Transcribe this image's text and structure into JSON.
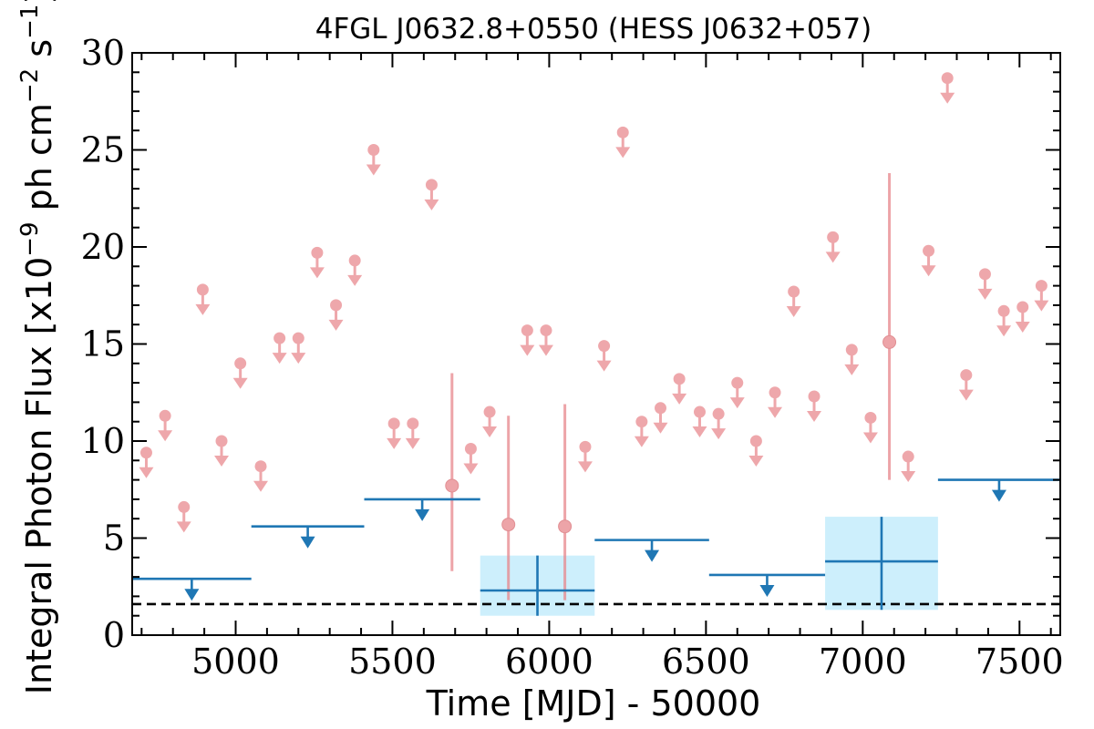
{
  "chart_data": {
    "type": "scatter",
    "title": "4FGL J0632.8+0550 (HESS J0632+057)",
    "xlabel": "Time [MJD] - 50000",
    "ylabel": "Integral Photon Flux [x10$^{-9}$ ph cm$^{-2}$ s$^{-1}$]",
    "xlim": [
      4670,
      7630
    ],
    "ylim": [
      0,
      30
    ],
    "xticks": [
      5000,
      5500,
      6000,
      6500,
      7000,
      7500
    ],
    "yticks": [
      0,
      5,
      10,
      15,
      20,
      25,
      30
    ],
    "grid": false,
    "colors": {
      "fine": "#e8868b",
      "coarse": "#1f77b4",
      "box": "#cdeffc",
      "reference": "#000000"
    },
    "reference_level": 1.6,
    "series": [
      {
        "kind": "upper_limits",
        "points": [
          {
            "x": 4715,
            "y": 9.4
          },
          {
            "x": 4775,
            "y": 11.3
          },
          {
            "x": 4835,
            "y": 6.6
          },
          {
            "x": 4895,
            "y": 17.8
          },
          {
            "x": 4955,
            "y": 10.0
          },
          {
            "x": 5015,
            "y": 14.0
          },
          {
            "x": 5080,
            "y": 8.7
          },
          {
            "x": 5140,
            "y": 15.3
          },
          {
            "x": 5200,
            "y": 15.3
          },
          {
            "x": 5260,
            "y": 19.7
          },
          {
            "x": 5320,
            "y": 17.0
          },
          {
            "x": 5380,
            "y": 19.3
          },
          {
            "x": 5440,
            "y": 25.0
          },
          {
            "x": 5505,
            "y": 10.9
          },
          {
            "x": 5565,
            "y": 10.9
          },
          {
            "x": 5625,
            "y": 23.2
          },
          {
            "x": 5750,
            "y": 9.6
          },
          {
            "x": 5810,
            "y": 11.5
          },
          {
            "x": 5930,
            "y": 15.7
          },
          {
            "x": 5990,
            "y": 15.7
          },
          {
            "x": 6115,
            "y": 9.7
          },
          {
            "x": 6175,
            "y": 14.9
          },
          {
            "x": 6235,
            "y": 25.9
          },
          {
            "x": 6295,
            "y": 11.0
          },
          {
            "x": 6355,
            "y": 11.7
          },
          {
            "x": 6415,
            "y": 13.2
          },
          {
            "x": 6480,
            "y": 11.5
          },
          {
            "x": 6540,
            "y": 11.4
          },
          {
            "x": 6600,
            "y": 13.0
          },
          {
            "x": 6660,
            "y": 10.0
          },
          {
            "x": 6720,
            "y": 12.5
          },
          {
            "x": 6780,
            "y": 17.7
          },
          {
            "x": 6845,
            "y": 12.3
          },
          {
            "x": 6905,
            "y": 20.5
          },
          {
            "x": 6965,
            "y": 14.7
          },
          {
            "x": 7025,
            "y": 11.2
          },
          {
            "x": 7145,
            "y": 9.2
          },
          {
            "x": 7210,
            "y": 19.8
          },
          {
            "x": 7270,
            "y": 28.7
          },
          {
            "x": 7330,
            "y": 13.4
          },
          {
            "x": 7390,
            "y": 18.6
          },
          {
            "x": 7450,
            "y": 16.7
          },
          {
            "x": 7510,
            "y": 16.9
          },
          {
            "x": 7570,
            "y": 18.0
          }
        ]
      },
      {
        "kind": "detections",
        "points": [
          {
            "x": 5690,
            "y": 7.7,
            "ylow": 3.3,
            "yhigh": 13.5
          },
          {
            "x": 5870,
            "y": 5.7,
            "ylow": 1.8,
            "yhigh": 11.3
          },
          {
            "x": 6050,
            "y": 5.6,
            "ylow": 1.8,
            "yhigh": 11.9
          },
          {
            "x": 7085,
            "y": 15.1,
            "ylow": 8.0,
            "yhigh": 23.8
          }
        ]
      },
      {
        "kind": "coarse_upper_limits",
        "points": [
          {
            "x0": 4670,
            "x1": 5050,
            "y": 2.9
          },
          {
            "x0": 5050,
            "x1": 5410,
            "y": 5.6
          },
          {
            "x0": 5410,
            "x1": 5780,
            "y": 7.0
          },
          {
            "x0": 6145,
            "x1": 6510,
            "y": 4.9
          },
          {
            "x0": 6510,
            "x1": 6880,
            "y": 3.1
          },
          {
            "x0": 7240,
            "x1": 7630,
            "y": 8.0
          }
        ]
      },
      {
        "kind": "coarse_detections",
        "points": [
          {
            "x0": 5780,
            "x1": 6145,
            "y": 2.3,
            "ylow": 1.0,
            "yhigh": 4.1
          },
          {
            "x0": 6880,
            "x1": 7240,
            "y": 3.8,
            "ylow": 1.3,
            "yhigh": 6.1
          }
        ]
      }
    ]
  }
}
